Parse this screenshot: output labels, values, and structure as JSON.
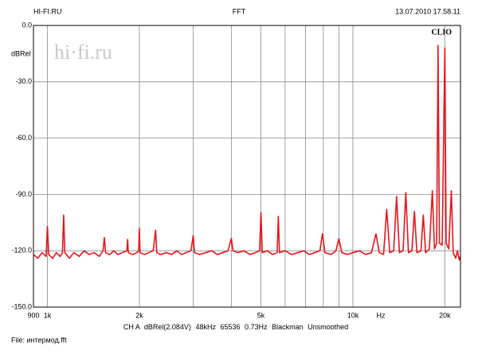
{
  "chart_data": {
    "type": "line",
    "header_left": "HI-FI.RU",
    "title": "FFT",
    "header_right": "13.07.2010 17.58.11",
    "ylabel": "dBRel",
    "xlabel": "Hz",
    "watermark": "hi·fi.ru",
    "brand": "CLIO",
    "info": [
      "CH A",
      "dBRel(2.084V)",
      "48kHz",
      "65536",
      "0.73Hz",
      "Blackman",
      "Unsmoothed"
    ],
    "file": "File: интермод.fft",
    "xscale": "log",
    "grid": true,
    "xlim": [
      900,
      22500
    ],
    "ylim": [
      -150,
      0
    ],
    "xticks": [
      900,
      {
        "value": 1000,
        "label": "1k"
      },
      {
        "value": 2000,
        "label": "2k"
      },
      {
        "value": 5000,
        "label": "5k"
      },
      {
        "value": 10000,
        "label": "10k"
      },
      {
        "value": 20000,
        "label": "20k"
      }
    ],
    "xgrid": [
      3000,
      4000,
      6000,
      7000,
      8000,
      9000
    ],
    "yticks": [
      {
        "value": 0,
        "label": "0.0"
      },
      {
        "value": -30,
        "label": "-30.0"
      },
      {
        "value": -60,
        "label": "-60.0"
      },
      {
        "value": -90,
        "label": "-90.0"
      },
      {
        "value": -120,
        "label": "-120.0"
      },
      {
        "value": -150,
        "label": "-150.0"
      }
    ],
    "x": [
      900,
      930,
      960,
      990,
      1000,
      1010,
      1040,
      1070,
      1100,
      1120,
      1130,
      1140,
      1180,
      1220,
      1270,
      1320,
      1370,
      1420,
      1480,
      1520,
      1536,
      1550,
      1600,
      1650,
      1700,
      1760,
      1820,
      1830,
      1840,
      1900,
      1960,
      1990,
      2000,
      2010,
      2080,
      2150,
      2220,
      2260,
      2280,
      2350,
      2450,
      2550,
      2650,
      2750,
      2850,
      2950,
      3000,
      3030,
      3150,
      3300,
      3450,
      3600,
      3750,
      3900,
      4000,
      4050,
      4200,
      4400,
      4600,
      4800,
      4950,
      5000,
      5050,
      5250,
      5450,
      5650,
      5700,
      5750,
      6000,
      6300,
      6600,
      6900,
      7200,
      7500,
      7800,
      7950,
      8100,
      8500,
      8800,
      9000,
      9200,
      9600,
      10000,
      10500,
      11000,
      11500,
      11900,
      12200,
      12600,
      12900,
      13200,
      13600,
      13900,
      14200,
      14600,
      14900,
      15200,
      15600,
      15900,
      16200,
      16700,
      17000,
      17300,
      17800,
      18200,
      18500,
      18800,
      19000,
      19200,
      19600,
      20000,
      20200,
      20600,
      21000,
      21300,
      21700,
      22000,
      22300,
      22500
    ],
    "series": [
      {
        "color": "#e8141b",
        "values": [
          -122,
          -124,
          -121,
          -123,
          -107,
          -122,
          -124,
          -121,
          -123,
          -121,
          -101,
          -121,
          -124,
          -121,
          -123,
          -120,
          -122,
          -121,
          -123,
          -120,
          -113,
          -121,
          -122,
          -120,
          -122,
          -121,
          -120,
          -114,
          -121,
          -122,
          -121,
          -120,
          -108,
          -121,
          -122,
          -121,
          -120,
          -109,
          -121,
          -122,
          -121,
          -122,
          -120,
          -122,
          -121,
          -120,
          -112,
          -121,
          -122,
          -121,
          -120,
          -122,
          -121,
          -120,
          -113.5,
          -120,
          -121,
          -120,
          -122,
          -121,
          -120,
          -99.6,
          -121,
          -120,
          -122,
          -121,
          -101.7,
          -121,
          -120,
          -122,
          -121,
          -120,
          -122,
          -121,
          -120,
          -111,
          -121,
          -122,
          -120,
          -113.5,
          -121,
          -122,
          -121,
          -120,
          -122,
          -121,
          -111,
          -121,
          -122,
          -98,
          -121,
          -120,
          -91,
          -121,
          -120,
          -89,
          -121,
          -120,
          -99,
          -121,
          -120,
          -101,
          -121,
          -119,
          -88,
          -119,
          -116,
          -10.6,
          -116,
          -117,
          -12,
          -116,
          -119,
          -88,
          -121,
          -124,
          -120,
          -125,
          -123
        ]
      }
    ]
  }
}
